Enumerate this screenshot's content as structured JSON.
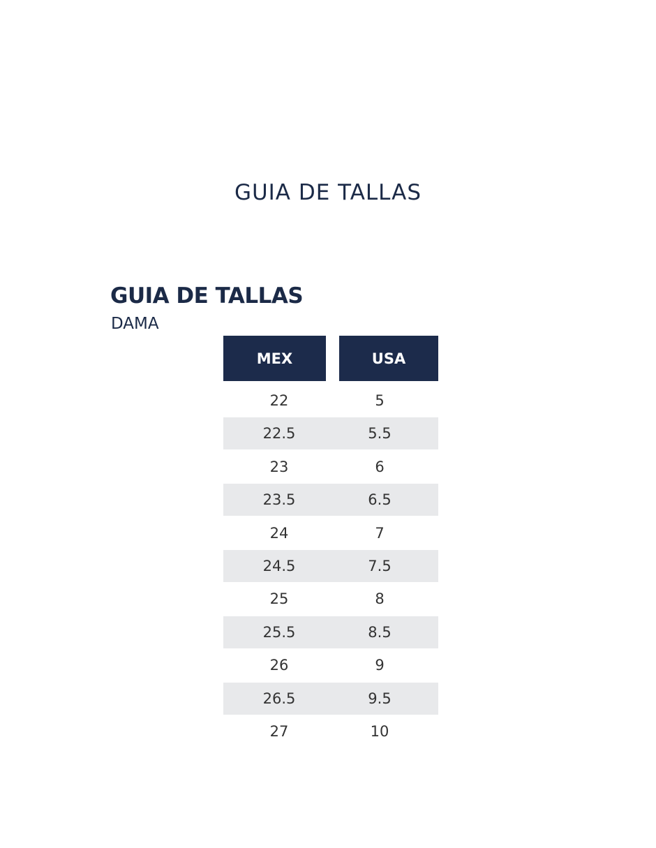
{
  "header": {
    "title": "GUIA DE TALLAS"
  },
  "section": {
    "title": "GUIA DE TALLAS",
    "subtitle": "DAMA"
  },
  "table": {
    "headers": [
      "MEX",
      "USA"
    ],
    "rows": [
      [
        "22",
        "5"
      ],
      [
        "22.5",
        "5.5"
      ],
      [
        "23",
        "6"
      ],
      [
        "23.5",
        "6.5"
      ],
      [
        "24",
        "7"
      ],
      [
        "24.5",
        "7.5"
      ],
      [
        "25",
        "8"
      ],
      [
        "25.5",
        "8.5"
      ],
      [
        "26",
        "9"
      ],
      [
        "26.5",
        "9.5"
      ],
      [
        "27",
        "10"
      ]
    ]
  }
}
